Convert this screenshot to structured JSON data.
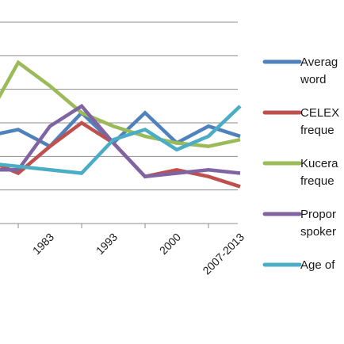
{
  "chart_data": {
    "type": "line",
    "title": "",
    "xlabel": "",
    "ylabel": "",
    "categories": [
      "1971",
      "1983",
      "1993",
      "2000",
      "2007-2013"
    ],
    "x_positions": [
      0.5,
      1.5,
      2.5,
      3.5,
      4.5
    ],
    "ylim": [
      0,
      6
    ],
    "grid": true,
    "legend_position": "right",
    "series": [
      {
        "name": "Average word",
        "legend_lines": [
          "Averag",
          "word"
        ],
        "color": "#4F81BD",
        "x": [
          0.25,
          0.5,
          1.0,
          1.5,
          2.0,
          2.5,
          3.0,
          3.5,
          4.0,
          4.5
        ],
        "values": [
          2.1,
          2.6,
          2.8,
          2.3,
          3.3,
          2.4,
          3.3,
          2.4,
          2.9,
          2.6
        ]
      },
      {
        "name": "CELEX frequency",
        "legend_lines": [
          "CELEX",
          "freque"
        ],
        "color": "#C0504D",
        "x": [
          0.25,
          0.5,
          1.0,
          1.5,
          2.0,
          2.5,
          3.0,
          3.5,
          4.0,
          4.5
        ],
        "values": [
          2.0,
          1.9,
          1.5,
          2.3,
          3.0,
          2.4,
          1.4,
          1.6,
          1.4,
          1.1
        ]
      },
      {
        "name": "Kucera frequency",
        "legend_lines": [
          "Kucera",
          "freque"
        ],
        "color": "#9BBB59",
        "x": [
          0.25,
          0.5,
          1.0,
          1.5,
          2.0,
          2.5,
          3.0,
          3.5,
          4.0,
          4.5
        ],
        "values": [
          3.2,
          3.1,
          4.8,
          4.1,
          3.3,
          2.9,
          2.6,
          2.4,
          2.3,
          2.5
        ]
      },
      {
        "name": "Proportion spoken",
        "legend_lines": [
          "Propor",
          "spoker"
        ],
        "color": "#8064A2",
        "x": [
          0.25,
          0.5,
          1.0,
          1.5,
          2.0,
          2.5,
          3.0,
          3.5,
          4.0,
          4.5
        ],
        "values": [
          1.7,
          1.6,
          1.6,
          2.9,
          3.5,
          2.4,
          1.4,
          1.5,
          1.6,
          1.5
        ]
      },
      {
        "name": "Age of acquisition",
        "legend_lines": [
          "Age of"
        ],
        "color": "#4BACC6",
        "x": [
          0.25,
          0.5,
          1.0,
          1.5,
          2.0,
          2.5,
          3.0,
          3.5,
          4.0,
          4.5
        ],
        "values": [
          1.9,
          1.8,
          1.7,
          1.6,
          1.5,
          2.5,
          2.8,
          2.2,
          2.6,
          3.5
        ]
      }
    ]
  }
}
